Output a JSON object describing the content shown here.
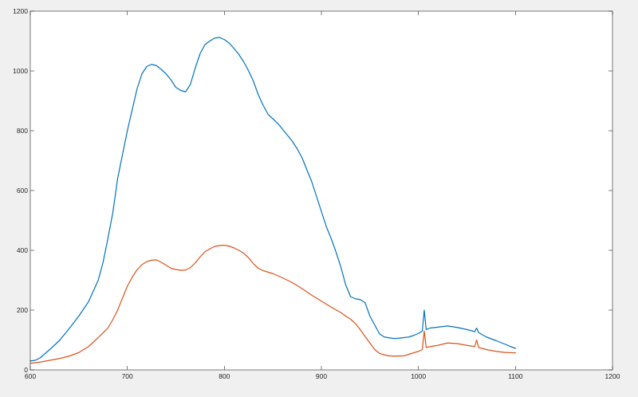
{
  "chart_data": {
    "type": "line",
    "title": "",
    "xlabel": "",
    "ylabel": "",
    "xlim": [
      600,
      1200
    ],
    "ylim": [
      0,
      1200
    ],
    "xticks": [
      600,
      700,
      800,
      900,
      1000,
      1100,
      1200
    ],
    "yticks": [
      0,
      200,
      400,
      600,
      800,
      1000,
      1200
    ],
    "xtick_labels": [
      "600",
      "700",
      "800",
      "900",
      "1000",
      "1100",
      "1200"
    ],
    "ytick_labels": [
      "0",
      "200",
      "400",
      "600",
      "800",
      "1000",
      "1200"
    ],
    "grid": false,
    "legend": "none",
    "series": [
      {
        "color": "#0072BD",
        "points": [
          [
            600,
            30
          ],
          [
            605,
            32
          ],
          [
            610,
            40
          ],
          [
            620,
            68
          ],
          [
            630,
            98
          ],
          [
            640,
            138
          ],
          [
            650,
            180
          ],
          [
            660,
            228
          ],
          [
            670,
            300
          ],
          [
            675,
            360
          ],
          [
            680,
            440
          ],
          [
            685,
            525
          ],
          [
            690,
            640
          ],
          [
            695,
            720
          ],
          [
            700,
            800
          ],
          [
            705,
            870
          ],
          [
            710,
            940
          ],
          [
            715,
            990
          ],
          [
            720,
            1015
          ],
          [
            725,
            1022
          ],
          [
            730,
            1018
          ],
          [
            735,
            1005
          ],
          [
            740,
            990
          ],
          [
            745,
            970
          ],
          [
            750,
            945
          ],
          [
            755,
            935
          ],
          [
            760,
            930
          ],
          [
            765,
            955
          ],
          [
            770,
            1010
          ],
          [
            775,
            1058
          ],
          [
            780,
            1088
          ],
          [
            785,
            1100
          ],
          [
            790,
            1110
          ],
          [
            795,
            1112
          ],
          [
            800,
            1105
          ],
          [
            805,
            1093
          ],
          [
            810,
            1075
          ],
          [
            815,
            1055
          ],
          [
            820,
            1030
          ],
          [
            825,
            1000
          ],
          [
            830,
            965
          ],
          [
            835,
            920
          ],
          [
            840,
            885
          ],
          [
            845,
            855
          ],
          [
            850,
            840
          ],
          [
            855,
            825
          ],
          [
            860,
            805
          ],
          [
            865,
            785
          ],
          [
            870,
            765
          ],
          [
            875,
            740
          ],
          [
            880,
            710
          ],
          [
            885,
            670
          ],
          [
            890,
            630
          ],
          [
            895,
            580
          ],
          [
            900,
            530
          ],
          [
            905,
            480
          ],
          [
            910,
            440
          ],
          [
            915,
            395
          ],
          [
            920,
            345
          ],
          [
            925,
            285
          ],
          [
            930,
            245
          ],
          [
            935,
            238
          ],
          [
            940,
            235
          ],
          [
            945,
            225
          ],
          [
            950,
            180
          ],
          [
            955,
            150
          ],
          [
            960,
            120
          ],
          [
            965,
            110
          ],
          [
            970,
            107
          ],
          [
            975,
            105
          ],
          [
            980,
            106
          ],
          [
            985,
            108
          ],
          [
            990,
            110
          ],
          [
            995,
            115
          ],
          [
            1000,
            122
          ],
          [
            1004,
            130
          ],
          [
            1006,
            200
          ],
          [
            1008,
            135
          ],
          [
            1012,
            140
          ],
          [
            1020,
            143
          ],
          [
            1030,
            147
          ],
          [
            1040,
            142
          ],
          [
            1050,
            135
          ],
          [
            1058,
            128
          ],
          [
            1060,
            140
          ],
          [
            1062,
            125
          ],
          [
            1070,
            110
          ],
          [
            1080,
            98
          ],
          [
            1090,
            85
          ],
          [
            1095,
            78
          ],
          [
            1100,
            72
          ]
        ]
      },
      {
        "color": "#D95319",
        "points": [
          [
            600,
            22
          ],
          [
            610,
            26
          ],
          [
            620,
            32
          ],
          [
            630,
            38
          ],
          [
            640,
            46
          ],
          [
            650,
            58
          ],
          [
            660,
            78
          ],
          [
            670,
            108
          ],
          [
            680,
            140
          ],
          [
            685,
            168
          ],
          [
            690,
            200
          ],
          [
            695,
            240
          ],
          [
            700,
            280
          ],
          [
            705,
            310
          ],
          [
            710,
            335
          ],
          [
            715,
            352
          ],
          [
            720,
            362
          ],
          [
            725,
            367
          ],
          [
            730,
            368
          ],
          [
            735,
            360
          ],
          [
            740,
            350
          ],
          [
            745,
            340
          ],
          [
            750,
            336
          ],
          [
            755,
            333
          ],
          [
            760,
            334
          ],
          [
            765,
            342
          ],
          [
            770,
            358
          ],
          [
            775,
            378
          ],
          [
            780,
            395
          ],
          [
            785,
            405
          ],
          [
            790,
            413
          ],
          [
            795,
            416
          ],
          [
            800,
            417
          ],
          [
            805,
            414
          ],
          [
            810,
            408
          ],
          [
            815,
            400
          ],
          [
            820,
            390
          ],
          [
            825,
            375
          ],
          [
            830,
            355
          ],
          [
            835,
            340
          ],
          [
            840,
            332
          ],
          [
            850,
            322
          ],
          [
            860,
            308
          ],
          [
            870,
            292
          ],
          [
            880,
            272
          ],
          [
            890,
            250
          ],
          [
            900,
            230
          ],
          [
            910,
            210
          ],
          [
            920,
            192
          ],
          [
            925,
            180
          ],
          [
            930,
            170
          ],
          [
            935,
            155
          ],
          [
            940,
            135
          ],
          [
            945,
            112
          ],
          [
            950,
            90
          ],
          [
            955,
            68
          ],
          [
            960,
            55
          ],
          [
            965,
            50
          ],
          [
            970,
            47
          ],
          [
            975,
            46
          ],
          [
            985,
            47
          ],
          [
            990,
            52
          ],
          [
            1000,
            62
          ],
          [
            1004,
            68
          ],
          [
            1006,
            130
          ],
          [
            1008,
            75
          ],
          [
            1012,
            78
          ],
          [
            1020,
            82
          ],
          [
            1030,
            90
          ],
          [
            1040,
            88
          ],
          [
            1050,
            82
          ],
          [
            1058,
            78
          ],
          [
            1060,
            100
          ],
          [
            1062,
            75
          ],
          [
            1070,
            68
          ],
          [
            1080,
            62
          ],
          [
            1090,
            58
          ],
          [
            1100,
            57
          ]
        ]
      }
    ]
  }
}
